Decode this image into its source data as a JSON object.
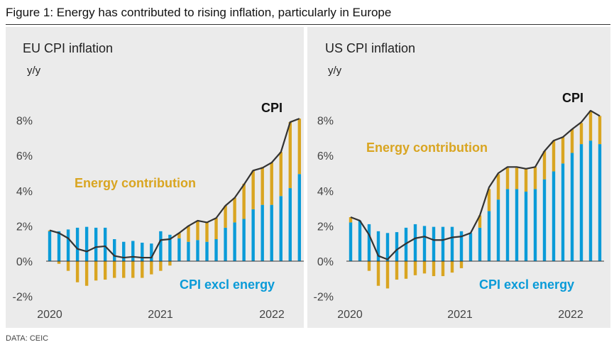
{
  "figure_title": "Figure 1: Energy has contributed to rising inflation, particularly in Europe",
  "source": "DATA: CEIC",
  "colors": {
    "excl_energy": "#0a9bd8",
    "energy": "#d9a521",
    "cpi": "#333333"
  },
  "chart_data": [
    {
      "type": "bar",
      "stacked": true,
      "title": "EU CPI inflation",
      "ylabel": "y/y",
      "ylim": [
        -2,
        8
      ],
      "yticks": [
        "-2%",
        "0%",
        "2%",
        "4%",
        "6%",
        "8%"
      ],
      "xticks": [
        "2020",
        "2021",
        "2022"
      ],
      "x_start": "2020-01",
      "x_end": "2022-04",
      "frequency": "monthly",
      "annotations": {
        "cpi": "CPI",
        "energy": "Energy contribution",
        "excl_energy": "CPI excl energy"
      },
      "series": [
        {
          "name": "CPI excl energy",
          "values": [
            1.7,
            1.7,
            1.8,
            1.9,
            1.95,
            1.9,
            1.9,
            1.25,
            1.1,
            1.15,
            1.05,
            1.0,
            1.7,
            1.5,
            1.3,
            1.1,
            1.2,
            1.1,
            1.25,
            1.9,
            2.2,
            2.4,
            2.95,
            3.2,
            3.2,
            3.7,
            4.15,
            4.95
          ]
        },
        {
          "name": "Energy contribution",
          "values": [
            0.05,
            -0.15,
            -0.55,
            -1.2,
            -1.4,
            -1.1,
            -1.05,
            -0.95,
            -0.95,
            -0.95,
            -0.95,
            -0.75,
            -0.55,
            -0.25,
            0.3,
            0.9,
            1.1,
            1.1,
            1.2,
            1.25,
            1.4,
            2.0,
            2.2,
            2.15,
            2.4,
            2.5,
            3.75,
            3.15
          ]
        },
        {
          "name": "CPI",
          "type": "line",
          "values": [
            1.75,
            1.6,
            1.3,
            0.7,
            0.55,
            0.8,
            0.85,
            0.3,
            0.2,
            0.25,
            0.2,
            0.2,
            1.2,
            1.25,
            1.6,
            2.0,
            2.3,
            2.2,
            2.45,
            3.15,
            3.6,
            4.35,
            5.15,
            5.3,
            5.6,
            6.2,
            7.9,
            8.1
          ]
        }
      ]
    },
    {
      "type": "bar",
      "stacked": true,
      "title": "US CPI inflation",
      "ylabel": "y/y",
      "ylim": [
        -2,
        8
      ],
      "yticks": [
        "-2%",
        "0%",
        "2%",
        "4%",
        "6%",
        "8%"
      ],
      "xticks": [
        "2020",
        "2021",
        "2022"
      ],
      "x_start": "2020-01",
      "x_end": "2022-04",
      "frequency": "monthly",
      "annotations": {
        "cpi": "CPI",
        "energy": "Energy contribution",
        "excl_energy": "CPI excl energy"
      },
      "series": [
        {
          "name": "CPI excl energy",
          "values": [
            2.2,
            2.3,
            2.1,
            1.7,
            1.6,
            1.65,
            1.9,
            2.1,
            2.0,
            1.95,
            1.95,
            1.95,
            1.7,
            1.6,
            1.9,
            2.85,
            3.5,
            4.1,
            4.1,
            3.95,
            4.1,
            4.65,
            5.1,
            5.55,
            6.15,
            6.65,
            6.85,
            6.65
          ]
        },
        {
          "name": "Energy contribution",
          "values": [
            0.3,
            0.0,
            -0.55,
            -1.4,
            -1.55,
            -1.05,
            -1.0,
            -0.8,
            -0.7,
            -0.85,
            -0.85,
            -0.65,
            -0.4,
            0.0,
            0.7,
            1.25,
            1.45,
            1.2,
            1.2,
            1.3,
            1.25,
            1.6,
            1.75,
            1.5,
            1.35,
            1.2,
            1.7,
            1.6
          ]
        },
        {
          "name": "CPI",
          "type": "line",
          "values": [
            2.5,
            2.3,
            1.5,
            0.3,
            0.1,
            0.65,
            1.0,
            1.3,
            1.4,
            1.2,
            1.2,
            1.35,
            1.4,
            1.6,
            2.6,
            4.2,
            5.0,
            5.35,
            5.35,
            5.25,
            5.35,
            6.25,
            6.85,
            7.05,
            7.5,
            7.9,
            8.55,
            8.25
          ]
        }
      ]
    }
  ]
}
